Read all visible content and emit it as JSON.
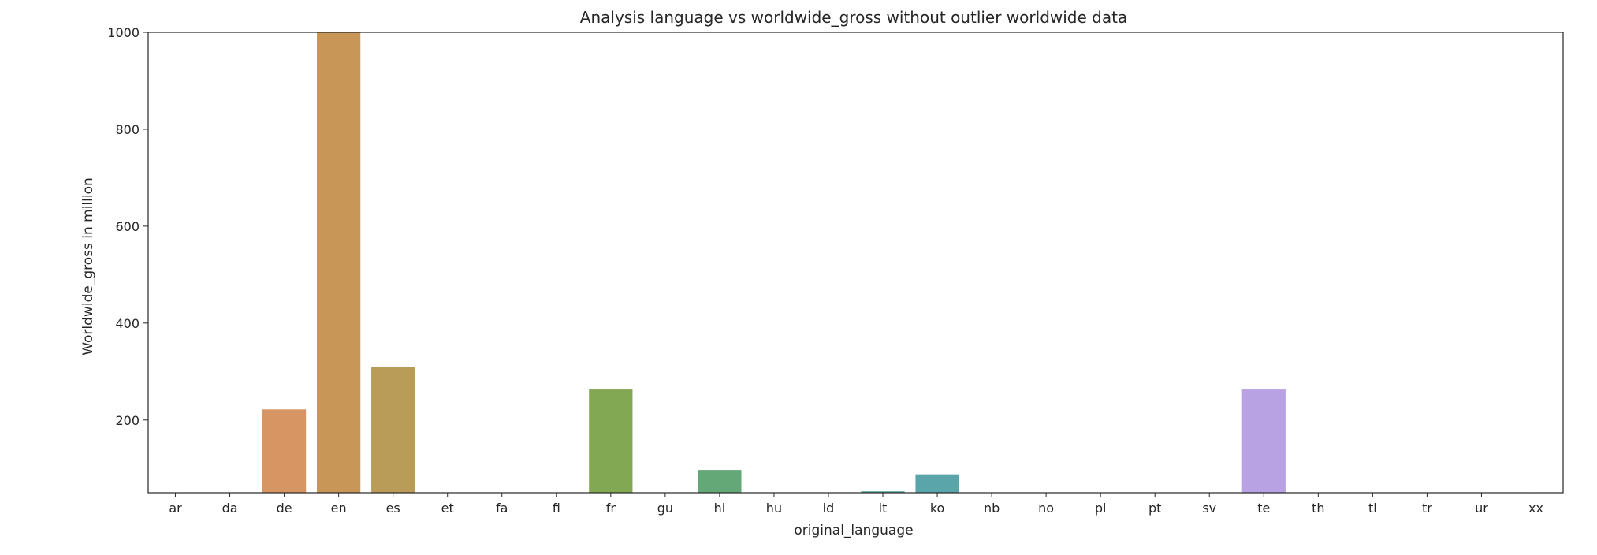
{
  "chart_data": {
    "type": "bar",
    "title": "Analysis language vs worldwide_gross without outlier worldwide data",
    "xlabel": "original_language",
    "ylabel": "Worldwide_gross in million",
    "categories": [
      "ar",
      "da",
      "de",
      "en",
      "es",
      "et",
      "fa",
      "fi",
      "fr",
      "gu",
      "hi",
      "hu",
      "id",
      "it",
      "ko",
      "nb",
      "no",
      "pl",
      "pt",
      "sv",
      "te",
      "th",
      "tl",
      "tr",
      "ur",
      "xx"
    ],
    "values": [
      0,
      0,
      222,
      1000,
      310,
      0,
      0,
      0,
      263,
      0,
      97,
      0,
      0,
      53,
      88,
      0,
      0,
      0,
      0,
      0,
      263,
      0,
      0,
      0,
      0,
      0
    ],
    "colors": [
      "#e1736a",
      "#e07e5f",
      "#d89564",
      "#c89757",
      "#b89c58",
      "#ab9e55",
      "#9ba452",
      "#8aa852",
      "#82a853",
      "#6aa65a",
      "#64a878",
      "#5ea68a",
      "#5aa795",
      "#56a79e",
      "#5aa5aa",
      "#5ea3b4",
      "#5fa1c0",
      "#6a9ccc",
      "#8296d3",
      "#9c8fd6",
      "#b8a2e3",
      "#c58cd8",
      "#d68bcf",
      "#e085c2",
      "#e082b0",
      "#e37fa0"
    ],
    "yticks": [
      200,
      400,
      600,
      800,
      1000
    ],
    "ylim": [
      50,
      1000
    ],
    "grid": false,
    "legend": "none"
  }
}
